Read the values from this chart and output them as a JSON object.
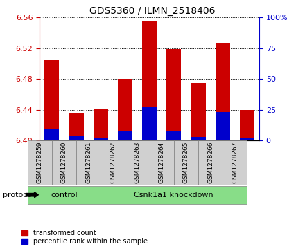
{
  "title": "GDS5360 / ILMN_2518406",
  "samples": [
    "GSM1278259",
    "GSM1278260",
    "GSM1278261",
    "GSM1278262",
    "GSM1278263",
    "GSM1278264",
    "GSM1278265",
    "GSM1278266",
    "GSM1278267"
  ],
  "red_values": [
    6.505,
    6.436,
    6.441,
    6.48,
    6.556,
    6.519,
    6.475,
    6.527,
    6.44
  ],
  "blue_values": [
    6.415,
    6.406,
    6.404,
    6.413,
    6.443,
    6.413,
    6.405,
    6.437,
    6.404
  ],
  "ymin": 6.4,
  "ymax": 6.56,
  "yticks_left": [
    6.4,
    6.44,
    6.48,
    6.52,
    6.56
  ],
  "yticks_right": [
    0,
    25,
    50,
    75,
    100
  ],
  "bar_color": "#cc0000",
  "blue_color": "#0000cc",
  "bar_width": 0.6,
  "control_count": 3,
  "knockdown_count": 6,
  "control_label": "control",
  "knockdown_label": "Csnk1a1 knockdown",
  "protocol_label": "protocol",
  "legend_red": "transformed count",
  "legend_blue": "percentile rank within the sample",
  "group_box_color": "#88dd88",
  "sample_box_color": "#d0d0d0",
  "right_axis_color": "#0000cc",
  "left_axis_color": "#cc0000"
}
